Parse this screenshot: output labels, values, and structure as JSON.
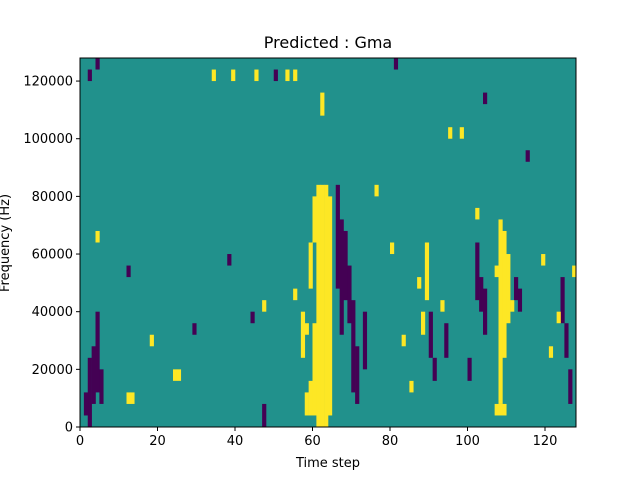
{
  "chart_data": {
    "type": "heatmap",
    "title": "Predicted : Gma",
    "xlabel": "Time step",
    "ylabel": "Frequency (Hz)",
    "xlim": [
      0,
      128
    ],
    "ylim": [
      0,
      128000
    ],
    "xticks": [
      0,
      20,
      40,
      60,
      80,
      100,
      120
    ],
    "yticks": [
      0,
      20000,
      40000,
      60000,
      80000,
      100000,
      120000
    ],
    "ytick_labels": [
      "0",
      "20000",
      "40000",
      "60000",
      "80000",
      "100000",
      "120000"
    ],
    "n_time_steps": 128,
    "n_freq_bins": 32,
    "bin_height_hz": 4000,
    "value_levels": [
      -1,
      0,
      1
    ],
    "colors": {
      "-1": "#440154",
      "0": "#21918c",
      "1": "#fde725"
    },
    "background_value": 0,
    "yellow_runs": [
      [
        61,
        0,
        84000
      ],
      [
        62,
        0,
        84000
      ],
      [
        63,
        0,
        84000
      ],
      [
        64,
        4000,
        80000
      ],
      [
        60,
        4000,
        36000
      ],
      [
        59,
        4000,
        16000
      ],
      [
        58,
        4000,
        12000
      ],
      [
        57,
        24000,
        40000
      ],
      [
        58,
        32000,
        36000
      ],
      [
        59,
        48000,
        64000
      ],
      [
        60,
        64000,
        80000
      ],
      [
        108,
        8000,
        72000
      ],
      [
        109,
        24000,
        68000
      ],
      [
        110,
        36000,
        60000
      ],
      [
        111,
        40000,
        44000
      ],
      [
        107,
        52000,
        56000
      ],
      [
        107,
        4000,
        8000
      ],
      [
        108,
        4000,
        8000
      ],
      [
        109,
        4000,
        8000
      ],
      [
        88,
        32000,
        40000
      ],
      [
        89,
        44000,
        64000
      ],
      [
        87,
        48000,
        52000
      ],
      [
        4,
        64000,
        68000
      ],
      [
        47,
        40000,
        44000
      ],
      [
        55,
        44000,
        48000
      ],
      [
        18,
        28000,
        32000
      ],
      [
        24,
        16000,
        20000
      ],
      [
        25,
        16000,
        20000
      ],
      [
        13,
        8000,
        12000
      ],
      [
        12,
        8000,
        12000
      ],
      [
        34,
        120000,
        124000
      ],
      [
        39,
        120000,
        124000
      ],
      [
        45,
        120000,
        124000
      ],
      [
        53,
        120000,
        124000
      ],
      [
        55,
        120000,
        124000
      ],
      [
        62,
        108000,
        116000
      ],
      [
        76,
        80000,
        84000
      ],
      [
        80,
        60000,
        64000
      ],
      [
        95,
        100000,
        104000
      ],
      [
        98,
        100000,
        104000
      ],
      [
        102,
        72000,
        76000
      ],
      [
        119,
        56000,
        60000
      ],
      [
        123,
        36000,
        40000
      ],
      [
        121,
        24000,
        28000
      ],
      [
        127,
        52000,
        56000
      ],
      [
        83,
        28000,
        32000
      ],
      [
        93,
        40000,
        44000
      ],
      [
        85,
        12000,
        16000
      ]
    ],
    "purple_runs": [
      [
        67,
        32000,
        72000
      ],
      [
        68,
        44000,
        68000
      ],
      [
        69,
        36000,
        56000
      ],
      [
        66,
        48000,
        84000
      ],
      [
        70,
        12000,
        44000
      ],
      [
        71,
        8000,
        28000
      ],
      [
        73,
        20000,
        40000
      ],
      [
        102,
        44000,
        64000
      ],
      [
        103,
        40000,
        52000
      ],
      [
        104,
        32000,
        48000
      ],
      [
        2,
        0,
        24000
      ],
      [
        3,
        8000,
        28000
      ],
      [
        4,
        12000,
        40000
      ],
      [
        5,
        8000,
        20000
      ],
      [
        1,
        4000,
        12000
      ],
      [
        90,
        24000,
        40000
      ],
      [
        91,
        16000,
        24000
      ],
      [
        94,
        24000,
        36000
      ],
      [
        100,
        16000,
        24000
      ],
      [
        113,
        40000,
        48000
      ],
      [
        112,
        44000,
        52000
      ],
      [
        126,
        8000,
        20000
      ],
      [
        125,
        24000,
        36000
      ],
      [
        124,
        36000,
        52000
      ],
      [
        2,
        120000,
        124000
      ],
      [
        4,
        124000,
        128000
      ],
      [
        47,
        0,
        8000
      ],
      [
        50,
        120000,
        124000
      ],
      [
        81,
        124000,
        128000
      ],
      [
        104,
        112000,
        116000
      ],
      [
        115,
        92000,
        96000
      ],
      [
        12,
        52000,
        56000
      ],
      [
        29,
        32000,
        36000
      ],
      [
        38,
        56000,
        60000
      ],
      [
        44,
        36000,
        40000
      ]
    ]
  }
}
